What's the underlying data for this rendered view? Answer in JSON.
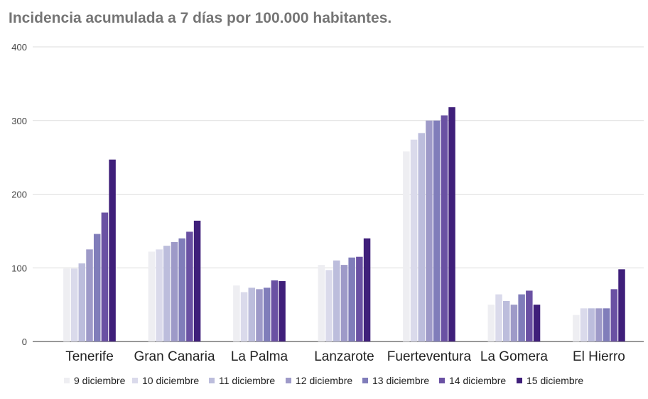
{
  "chart_data": {
    "type": "bar",
    "title": "Incidencia acumulada a 7 días por 100.000 habitantes.",
    "xlabel": "",
    "ylabel": "",
    "ylim": [
      0,
      400
    ],
    "yticks": [
      "0",
      "100",
      "200",
      "300",
      "400"
    ],
    "grid": true,
    "legend_position": "bottom",
    "categories": [
      "Tenerife",
      "Gran Canaria",
      "La Palma",
      "Lanzarote",
      "Fuerteventura",
      "La Gomera",
      "El Hierro"
    ],
    "series": [
      {
        "name": "9 diciembre",
        "color": "#eeeef2",
        "values": [
          99,
          122,
          76,
          104,
          258,
          50,
          36
        ]
      },
      {
        "name": "10 diciembre",
        "color": "#dadaeb",
        "values": [
          99,
          125,
          67,
          97,
          274,
          64,
          45
        ]
      },
      {
        "name": "11 diciembre",
        "color": "#bcbddc",
        "values": [
          106,
          130,
          73,
          110,
          283,
          55,
          45
        ]
      },
      {
        "name": "12 diciembre",
        "color": "#9e9ac8",
        "values": [
          125,
          135,
          71,
          104,
          300,
          50,
          45
        ]
      },
      {
        "name": "13 diciembre",
        "color": "#807dba",
        "values": [
          146,
          140,
          73,
          114,
          300,
          64,
          45
        ]
      },
      {
        "name": "14 diciembre",
        "color": "#6a51a3",
        "values": [
          175,
          149,
          83,
          115,
          307,
          69,
          71
        ]
      },
      {
        "name": "15 diciembre",
        "color": "#3f1f7a",
        "values": [
          247,
          164,
          82,
          140,
          318,
          50,
          98
        ]
      }
    ]
  }
}
